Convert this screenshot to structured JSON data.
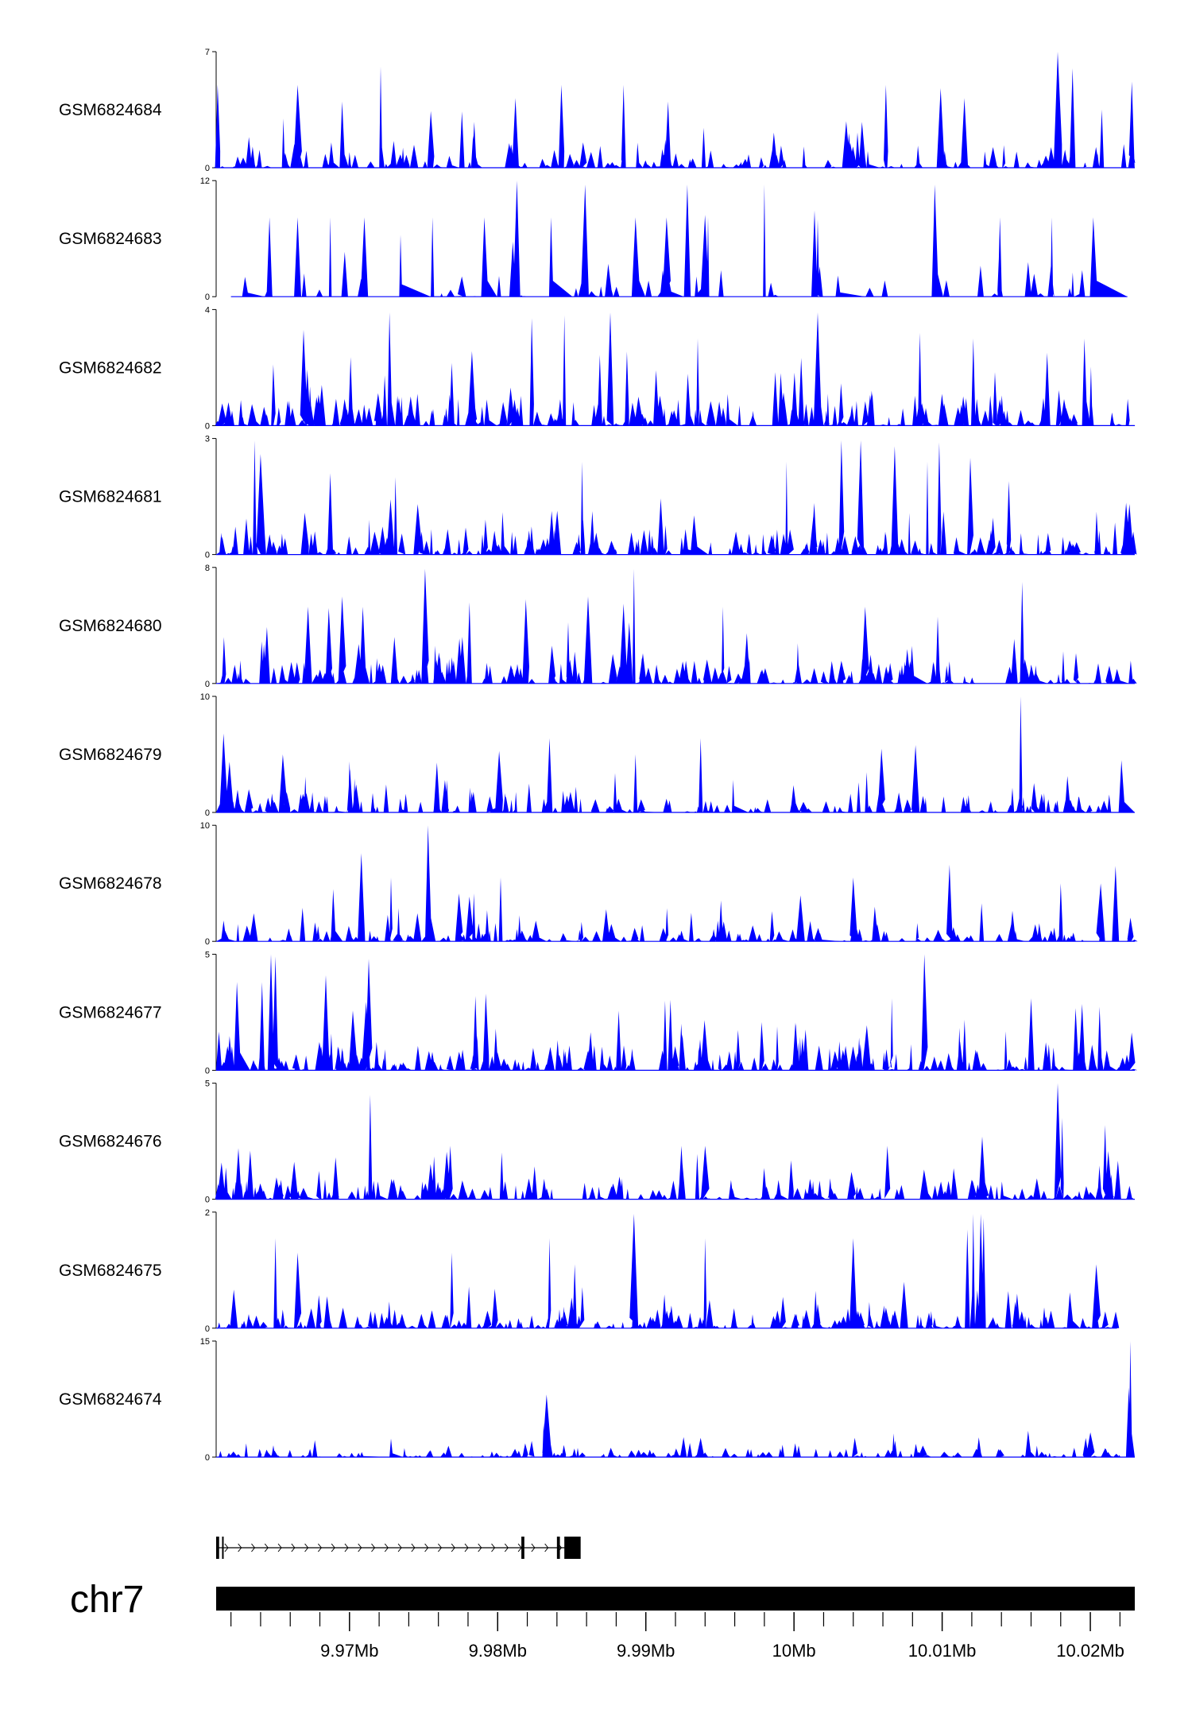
{
  "chart_data": {
    "type": "area",
    "chromosome": "chr7",
    "xlim": [
      9.961,
      10.023
    ],
    "x_unit": "Mb",
    "x_ticks": [
      9.97,
      9.98,
      9.99,
      10.0,
      10.01,
      10.02
    ],
    "x_tick_labels": [
      "9.97Mb",
      "9.98Mb",
      "9.99Mb",
      "10Mb",
      "10.01Mb",
      "10.02Mb"
    ],
    "x_minor_ticks": [
      9.962,
      9.964,
      9.966,
      9.968,
      9.972,
      9.974,
      9.976,
      9.978,
      9.982,
      9.984,
      9.986,
      9.988,
      9.992,
      9.994,
      9.996,
      9.998,
      10.002,
      10.004,
      10.006,
      10.008,
      10.012,
      10.014,
      10.016,
      10.018,
      10.022
    ],
    "fill_color": "#0000ff",
    "series": [
      {
        "name": "GSM6824684",
        "ymax": 7,
        "ymin_label": "0",
        "ymax_label": "7",
        "seed": 11,
        "density": 0.5,
        "base": 0.22,
        "gaps": [
          [
            9.9995,
            10.0005
          ]
        ],
        "peaks": [
          [
            9.9721,
            6.1
          ],
          [
            10.0178,
            7.0
          ],
          [
            10.0188,
            6.0
          ],
          [
            10.0228,
            5.2
          ],
          [
            9.9611,
            5.0
          ],
          [
            9.9665,
            5.0
          ],
          [
            9.9843,
            5.0
          ],
          [
            9.9885,
            5.0
          ],
          [
            10.0062,
            5.0
          ],
          [
            10.0099,
            4.8
          ],
          [
            9.9915,
            4.0
          ],
          [
            10.0115,
            4.2
          ],
          [
            9.9812,
            4.2
          ],
          [
            9.9695,
            4.0
          ]
        ]
      },
      {
        "name": "GSM6824683",
        "ymax": 12,
        "ymin_label": "0",
        "ymax_label": "12",
        "seed": 23,
        "density": 0.1,
        "base": 0.3,
        "start": 9.962,
        "end": 10.0225,
        "gaps": [
          [
            9.9993,
            10.0005
          ]
        ],
        "peaks": [
          [
            9.9813,
            12.0
          ],
          [
            9.9859,
            11.6
          ],
          [
            9.9928,
            11.6
          ],
          [
            9.998,
            11.6
          ],
          [
            10.0095,
            11.6
          ],
          [
            9.9646,
            8.2
          ],
          [
            9.9665,
            8.2
          ],
          [
            9.9687,
            8.2
          ],
          [
            9.971,
            8.2
          ],
          [
            9.9756,
            8.2
          ],
          [
            9.9791,
            8.2
          ],
          [
            9.9836,
            8.2
          ],
          [
            9.9893,
            8.2
          ],
          [
            9.9914,
            8.2
          ],
          [
            9.9942,
            8.2
          ],
          [
            10.0016,
            8.0
          ],
          [
            10.0139,
            8.2
          ],
          [
            10.0174,
            8.2
          ],
          [
            10.0202,
            8.2
          ]
        ]
      },
      {
        "name": "GSM6824682",
        "ymax": 4,
        "ymin_label": "0",
        "ymax_label": "4",
        "seed": 37,
        "density": 1.0,
        "base": 0.28,
        "peaks": [
          [
            9.9727,
            3.9
          ],
          [
            9.9876,
            3.9
          ],
          [
            10.0016,
            3.9
          ],
          [
            9.9845,
            3.8
          ],
          [
            9.9823,
            3.7
          ],
          [
            10.0085,
            3.2
          ],
          [
            9.9669,
            3.3
          ],
          [
            10.0121,
            3.0
          ],
          [
            9.9935,
            3.0
          ],
          [
            10.0196,
            3.0
          ]
        ]
      },
      {
        "name": "GSM6824681",
        "ymax": 3,
        "ymin_label": "0",
        "ymax_label": "3",
        "seed": 41,
        "density": 0.85,
        "base": 0.22,
        "peaks": [
          [
            9.9636,
            2.95
          ],
          [
            10.0032,
            2.95
          ],
          [
            10.0045,
            2.95
          ],
          [
            10.0098,
            2.9
          ],
          [
            10.0068,
            2.8
          ],
          [
            10.0119,
            2.5
          ],
          [
            10.009,
            2.4
          ],
          [
            9.9857,
            2.4
          ],
          [
            9.9687,
            2.1
          ],
          [
            9.9731,
            2.0
          ],
          [
            10.0145,
            1.9
          ],
          [
            9.964,
            2.6
          ],
          [
            9.9995,
            2.4
          ]
        ]
      },
      {
        "name": "GSM6824680",
        "ymax": 8,
        "ymin_label": "0",
        "ymax_label": "8",
        "seed": 53,
        "density": 0.9,
        "base": 0.22,
        "peaks": [
          [
            9.9751,
            7.9
          ],
          [
            9.9892,
            7.9
          ],
          [
            10.0154,
            7.0
          ],
          [
            9.9695,
            6.0
          ],
          [
            9.9861,
            6.0
          ],
          [
            9.9819,
            5.8
          ],
          [
            9.9885,
            5.5
          ],
          [
            9.9781,
            5.6
          ],
          [
            9.9672,
            5.3
          ],
          [
            9.9952,
            5.3
          ],
          [
            10.0048,
            5.3
          ],
          [
            10.0097,
            4.6
          ],
          [
            9.9686,
            5.2
          ],
          [
            9.9709,
            5.3
          ]
        ]
      },
      {
        "name": "GSM6824679",
        "ymax": 10,
        "ymin_label": "0",
        "ymax_label": "10",
        "seed": 67,
        "density": 0.8,
        "base": 0.18,
        "peaks": [
          [
            10.0153,
            10.0
          ],
          [
            9.9615,
            6.8
          ],
          [
            9.9835,
            6.4
          ],
          [
            9.9937,
            6.4
          ],
          [
            10.0082,
            5.8
          ],
          [
            10.0059,
            5.5
          ],
          [
            9.9801,
            5.3
          ],
          [
            9.9893,
            5.0
          ],
          [
            9.9655,
            5.0
          ],
          [
            9.97,
            4.4
          ],
          [
            10.0221,
            4.5
          ],
          [
            9.9759,
            4.3
          ]
        ]
      },
      {
        "name": "GSM6824678",
        "ymax": 10,
        "ymin_label": "0",
        "ymax_label": "10",
        "seed": 79,
        "density": 0.65,
        "base": 0.18,
        "gaps": [
          [
            9.9991,
            9.9996
          ]
        ],
        "peaks": [
          [
            9.9753,
            10.0
          ],
          [
            9.9708,
            7.6
          ],
          [
            9.9802,
            5.5
          ],
          [
            9.9728,
            5.5
          ],
          [
            10.0105,
            6.6
          ],
          [
            10.004,
            5.5
          ],
          [
            10.0217,
            6.5
          ],
          [
            10.0207,
            5.0
          ],
          [
            9.9689,
            4.5
          ],
          [
            10.018,
            5.0
          ],
          [
            9.9752,
            5.0
          ]
        ]
      },
      {
        "name": "GSM6824677",
        "ymax": 5,
        "ymin_label": "0",
        "ymax_label": "5",
        "seed": 83,
        "density": 0.95,
        "base": 0.25,
        "peaks": [
          [
            9.9647,
            5.0
          ],
          [
            9.965,
            4.9
          ],
          [
            9.9713,
            4.8
          ],
          [
            10.0088,
            5.0
          ],
          [
            9.9684,
            4.1
          ],
          [
            9.9785,
            3.2
          ],
          [
            9.9792,
            3.3
          ],
          [
            9.9624,
            3.8
          ],
          [
            9.9641,
            3.8
          ],
          [
            10.016,
            3.1
          ],
          [
            9.9913,
            3.0
          ],
          [
            10.0066,
            3.1
          ]
        ]
      },
      {
        "name": "GSM6824676",
        "ymax": 5,
        "ymin_label": "0",
        "ymax_label": "5",
        "seed": 97,
        "density": 0.75,
        "base": 0.18,
        "peaks": [
          [
            10.0178,
            5.0
          ],
          [
            9.9714,
            4.5
          ],
          [
            10.021,
            3.2
          ],
          [
            10.0127,
            2.7
          ],
          [
            10.0181,
            3.5
          ],
          [
            9.9768,
            2.3
          ],
          [
            9.9924,
            2.3
          ],
          [
            10.0063,
            2.3
          ],
          [
            9.9625,
            2.2
          ],
          [
            9.994,
            2.3
          ]
        ]
      },
      {
        "name": "GSM6824675",
        "ymax": 2,
        "ymin_label": "0",
        "ymax_label": "2",
        "seed": 101,
        "density": 0.95,
        "base": 0.18,
        "end": 10.0218,
        "peaks": [
          [
            9.9892,
            1.97
          ],
          [
            10.0121,
            1.97
          ],
          [
            10.0126,
            1.97
          ],
          [
            10.0128,
            1.9
          ],
          [
            10.0117,
            1.7
          ],
          [
            9.9835,
            1.55
          ],
          [
            9.965,
            1.55
          ],
          [
            9.994,
            1.55
          ],
          [
            10.004,
            1.55
          ],
          [
            9.9769,
            1.3
          ],
          [
            9.9852,
            1.1
          ],
          [
            9.9665,
            1.3
          ],
          [
            10.0204,
            1.1
          ]
        ]
      },
      {
        "name": "GSM6824674",
        "ymax": 15,
        "ymin_label": "0",
        "ymax_label": "15",
        "seed": 109,
        "density": 0.55,
        "base": 0.08,
        "peaks": [
          [
            10.0227,
            15.0
          ],
          [
            10.0226,
            9.0
          ],
          [
            9.9833,
            8.1
          ],
          [
            9.9831,
            4.5
          ],
          [
            10.0158,
            3.4
          ],
          [
            10.02,
            3.2
          ],
          [
            9.9728,
            2.4
          ],
          [
            9.9823,
            2.1
          ],
          [
            10.0041,
            2.5
          ],
          [
            9.9937,
            2.5
          ]
        ]
      }
    ],
    "gene_model": {
      "strand": "+",
      "start": 9.961,
      "end": 9.9855,
      "exons": [
        [
          9.961,
          9.9612
        ],
        [
          9.9614,
          9.9615
        ],
        [
          9.9816,
          9.9818
        ],
        [
          9.984,
          9.9842
        ],
        [
          9.9845,
          9.9856
        ]
      ]
    }
  }
}
